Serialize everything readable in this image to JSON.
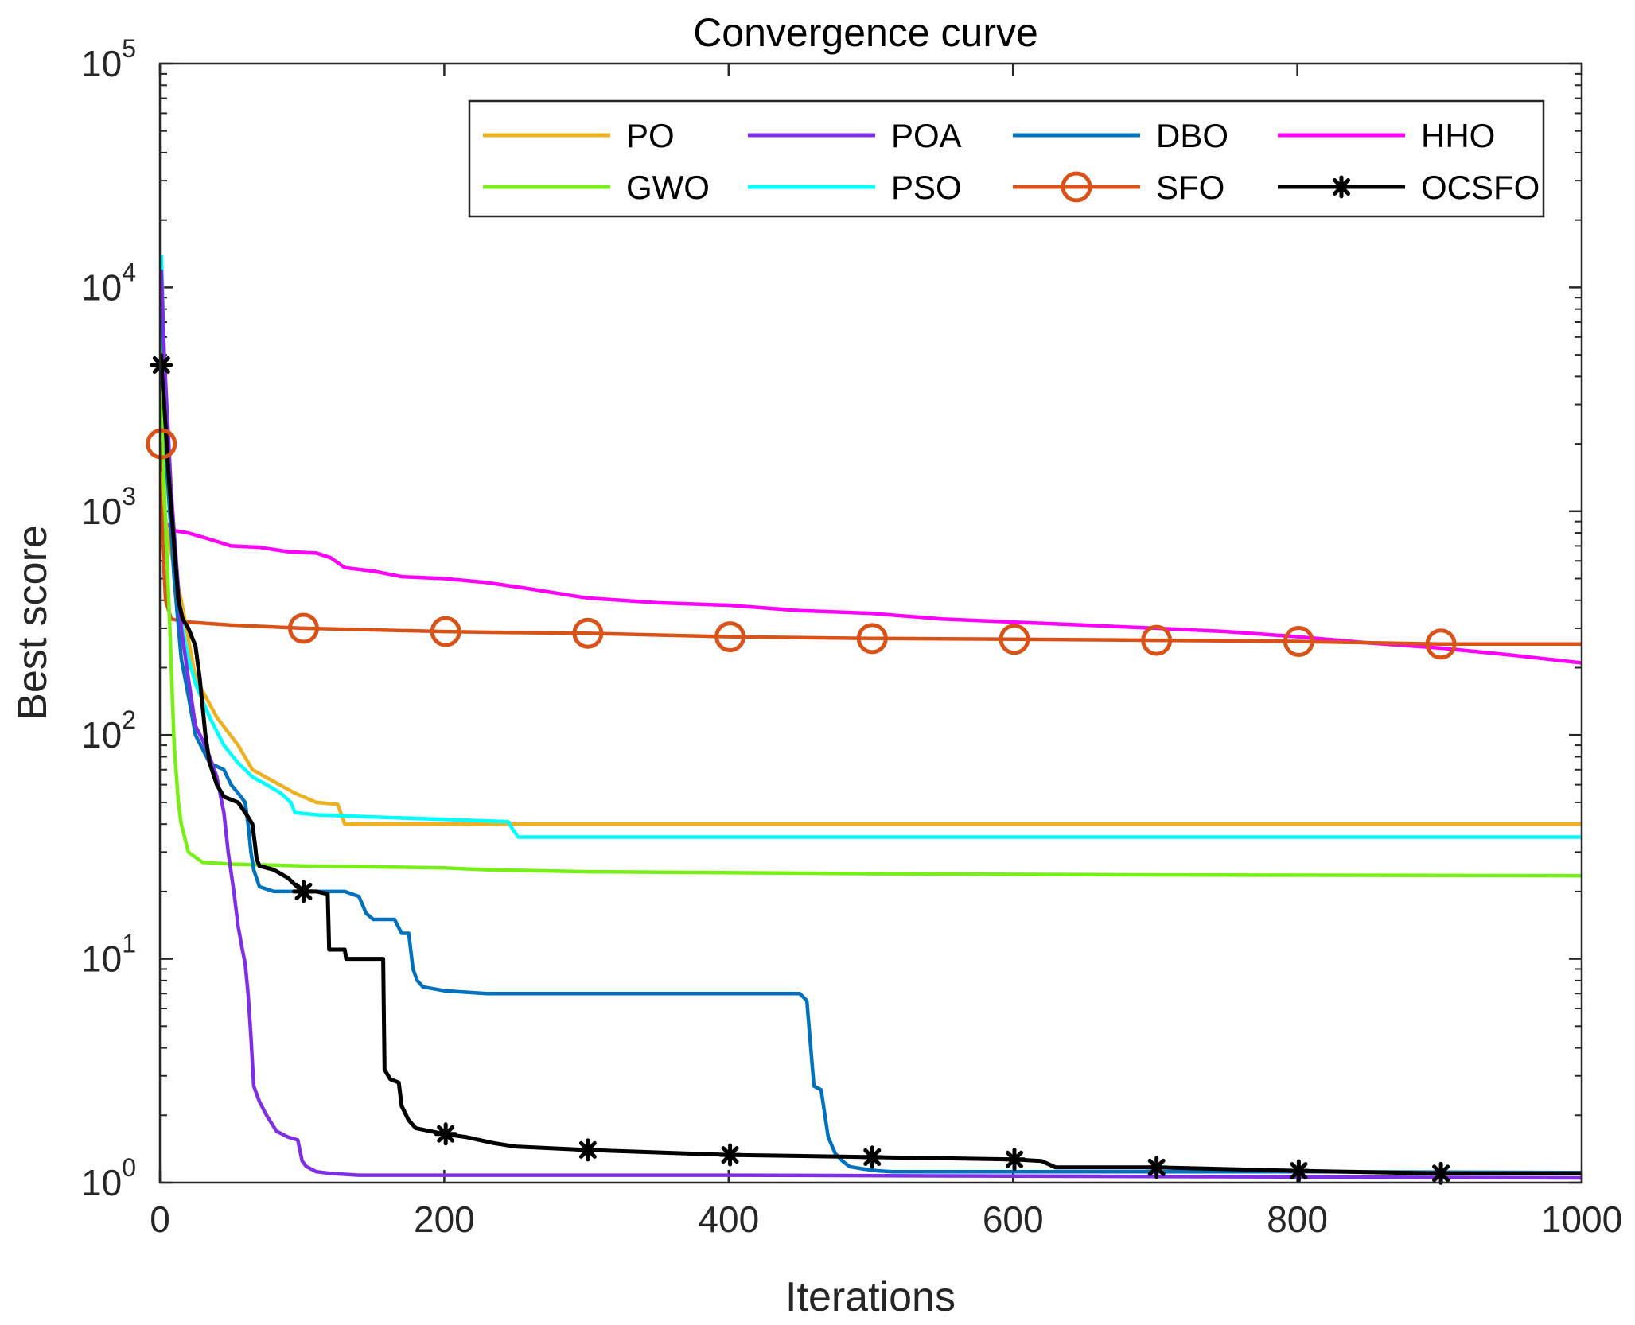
{
  "chart_data": {
    "type": "line",
    "title": "Convergence curve",
    "xlabel": "Iterations",
    "ylabel": "Best score",
    "xlim": [
      0,
      1000
    ],
    "ylim_log10": [
      0,
      5
    ],
    "y_scale": "log",
    "x_ticks": [
      "0",
      "200",
      "400",
      "600",
      "800",
      "1000"
    ],
    "y_ticks": [
      {
        "base": "10",
        "exp": "0"
      },
      {
        "base": "10",
        "exp": "1"
      },
      {
        "base": "10",
        "exp": "2"
      },
      {
        "base": "10",
        "exp": "3"
      },
      {
        "base": "10",
        "exp": "4"
      },
      {
        "base": "10",
        "exp": "5"
      }
    ],
    "legend_position": "top-right",
    "series": [
      {
        "name": "PO",
        "color": "#EDB120",
        "marker": "none",
        "points": [
          [
            1,
            1500
          ],
          [
            5,
            800
          ],
          [
            15,
            400
          ],
          [
            25,
            180
          ],
          [
            40,
            120
          ],
          [
            55,
            90
          ],
          [
            65,
            70
          ],
          [
            80,
            62
          ],
          [
            95,
            55
          ],
          [
            110,
            50
          ],
          [
            125,
            49
          ],
          [
            130,
            40
          ],
          [
            200,
            40
          ],
          [
            300,
            40
          ],
          [
            500,
            40
          ],
          [
            1000,
            40
          ]
        ]
      },
      {
        "name": "POA",
        "color": "#7E2FE5",
        "marker": "none",
        "points": [
          [
            1,
            12000
          ],
          [
            3,
            5000
          ],
          [
            8,
            1200
          ],
          [
            15,
            300
          ],
          [
            20,
            180
          ],
          [
            25,
            110
          ],
          [
            30,
            95
          ],
          [
            35,
            80
          ],
          [
            40,
            65
          ],
          [
            45,
            45
          ],
          [
            48,
            30
          ],
          [
            52,
            20
          ],
          [
            55,
            14
          ],
          [
            58,
            11
          ],
          [
            60,
            9.5
          ],
          [
            62,
            7
          ],
          [
            64,
            4.5
          ],
          [
            66,
            2.7
          ],
          [
            70,
            2.3
          ],
          [
            75,
            2
          ],
          [
            82,
            1.7
          ],
          [
            90,
            1.6
          ],
          [
            97,
            1.55
          ],
          [
            100,
            1.25
          ],
          [
            103,
            1.18
          ],
          [
            110,
            1.12
          ],
          [
            120,
            1.1
          ],
          [
            130,
            1.09
          ],
          [
            140,
            1.08
          ],
          [
            200,
            1.08
          ],
          [
            400,
            1.08
          ],
          [
            1000,
            1.05
          ]
        ]
      },
      {
        "name": "DBO",
        "color": "#0072BD",
        "marker": "none",
        "points": [
          [
            1,
            9000
          ],
          [
            5,
            1500
          ],
          [
            10,
            500
          ],
          [
            15,
            220
          ],
          [
            20,
            150
          ],
          [
            25,
            100
          ],
          [
            35,
            75
          ],
          [
            45,
            70
          ],
          [
            50,
            60
          ],
          [
            55,
            55
          ],
          [
            60,
            50
          ],
          [
            62,
            40
          ],
          [
            64,
            30
          ],
          [
            66,
            25
          ],
          [
            70,
            21
          ],
          [
            80,
            20
          ],
          [
            100,
            20
          ],
          [
            130,
            20
          ],
          [
            140,
            19
          ],
          [
            145,
            16
          ],
          [
            150,
            15
          ],
          [
            165,
            15
          ],
          [
            170,
            13
          ],
          [
            175,
            13
          ],
          [
            178,
            9
          ],
          [
            181,
            8
          ],
          [
            185,
            7.5
          ],
          [
            200,
            7.2
          ],
          [
            230,
            7.0
          ],
          [
            300,
            7.0
          ],
          [
            400,
            7.0
          ],
          [
            450,
            7.0
          ],
          [
            455,
            6.5
          ],
          [
            460,
            2.7
          ],
          [
            465,
            2.6
          ],
          [
            470,
            1.6
          ],
          [
            475,
            1.35
          ],
          [
            480,
            1.25
          ],
          [
            485,
            1.18
          ],
          [
            495,
            1.15
          ],
          [
            505,
            1.13
          ],
          [
            515,
            1.12
          ],
          [
            600,
            1.12
          ],
          [
            800,
            1.12
          ],
          [
            1000,
            1.11
          ]
        ]
      },
      {
        "name": "HHO",
        "color": "#FF00FF",
        "marker": "none",
        "points": [
          [
            1,
            2000
          ],
          [
            3,
            900
          ],
          [
            10,
            820
          ],
          [
            20,
            800
          ],
          [
            35,
            750
          ],
          [
            50,
            700
          ],
          [
            70,
            690
          ],
          [
            90,
            660
          ],
          [
            110,
            650
          ],
          [
            120,
            620
          ],
          [
            130,
            560
          ],
          [
            150,
            540
          ],
          [
            170,
            510
          ],
          [
            200,
            500
          ],
          [
            230,
            480
          ],
          [
            260,
            450
          ],
          [
            300,
            410
          ],
          [
            350,
            390
          ],
          [
            400,
            380
          ],
          [
            450,
            360
          ],
          [
            500,
            350
          ],
          [
            550,
            330
          ],
          [
            600,
            320
          ],
          [
            650,
            310
          ],
          [
            700,
            300
          ],
          [
            750,
            290
          ],
          [
            800,
            275
          ],
          [
            850,
            258
          ],
          [
            900,
            245
          ],
          [
            950,
            228
          ],
          [
            1000,
            210
          ]
        ]
      },
      {
        "name": "GWO",
        "color": "#77F015",
        "marker": "none",
        "points": [
          [
            1,
            9000
          ],
          [
            2,
            2000
          ],
          [
            4,
            900
          ],
          [
            7,
            300
          ],
          [
            10,
            90
          ],
          [
            13,
            50
          ],
          [
            15,
            40
          ],
          [
            20,
            30
          ],
          [
            30,
            27
          ],
          [
            50,
            26.5
          ],
          [
            100,
            26
          ],
          [
            200,
            25.5
          ],
          [
            230,
            25
          ],
          [
            300,
            24.5
          ],
          [
            500,
            24
          ],
          [
            700,
            23.7
          ],
          [
            1000,
            23.5
          ]
        ]
      },
      {
        "name": "PSO",
        "color": "#00FFFF",
        "marker": "none",
        "points": [
          [
            1,
            14000
          ],
          [
            3,
            5000
          ],
          [
            6,
            1500
          ],
          [
            10,
            600
          ],
          [
            15,
            320
          ],
          [
            20,
            220
          ],
          [
            25,
            170
          ],
          [
            35,
            120
          ],
          [
            45,
            90
          ],
          [
            55,
            75
          ],
          [
            65,
            65
          ],
          [
            75,
            60
          ],
          [
            85,
            55
          ],
          [
            92,
            50
          ],
          [
            95,
            45
          ],
          [
            110,
            44
          ],
          [
            150,
            43
          ],
          [
            200,
            42
          ],
          [
            245,
            41
          ],
          [
            248,
            38
          ],
          [
            252,
            35
          ],
          [
            300,
            35
          ],
          [
            500,
            35
          ],
          [
            700,
            35
          ],
          [
            1000,
            35
          ]
        ]
      },
      {
        "name": "SFO",
        "color": "#D95319",
        "marker": "circle",
        "points": [
          [
            1,
            2000
          ],
          [
            2,
            700
          ],
          [
            4,
            400
          ],
          [
            8,
            330
          ],
          [
            20,
            320
          ],
          [
            50,
            310
          ],
          [
            100,
            300
          ],
          [
            150,
            295
          ],
          [
            200,
            290
          ],
          [
            250,
            287
          ],
          [
            300,
            285
          ],
          [
            400,
            275
          ],
          [
            500,
            270
          ],
          [
            600,
            268
          ],
          [
            700,
            265
          ],
          [
            800,
            262
          ],
          [
            900,
            255
          ],
          [
            1000,
            255
          ]
        ],
        "marker_points": [
          [
            1,
            2000
          ],
          [
            101,
            300
          ],
          [
            201,
            290
          ],
          [
            301,
            285
          ],
          [
            401,
            275
          ],
          [
            501,
            270
          ],
          [
            601,
            268
          ],
          [
            701,
            265
          ],
          [
            801,
            262
          ],
          [
            901,
            255
          ]
        ]
      },
      {
        "name": "OCSFO",
        "color": "#000000",
        "marker": "star",
        "points": [
          [
            1,
            4500
          ],
          [
            3,
            3000
          ],
          [
            6,
            1500
          ],
          [
            10,
            700
          ],
          [
            13,
            400
          ],
          [
            16,
            330
          ],
          [
            20,
            300
          ],
          [
            25,
            250
          ],
          [
            28,
            180
          ],
          [
            32,
            100
          ],
          [
            35,
            75
          ],
          [
            40,
            60
          ],
          [
            45,
            53
          ],
          [
            55,
            50
          ],
          [
            60,
            45
          ],
          [
            62,
            43
          ],
          [
            65,
            40
          ],
          [
            67,
            32
          ],
          [
            68,
            28
          ],
          [
            70,
            26
          ],
          [
            80,
            25
          ],
          [
            90,
            23
          ],
          [
            100,
            20
          ],
          [
            110,
            20
          ],
          [
            118,
            19.5
          ],
          [
            119,
            11
          ],
          [
            130,
            11
          ],
          [
            131,
            10
          ],
          [
            157,
            10
          ],
          [
            158,
            3.2
          ],
          [
            162,
            2.9
          ],
          [
            168,
            2.8
          ],
          [
            170,
            2.2
          ],
          [
            175,
            1.9
          ],
          [
            180,
            1.75
          ],
          [
            190,
            1.7
          ],
          [
            200,
            1.65
          ],
          [
            215,
            1.6
          ],
          [
            235,
            1.5
          ],
          [
            250,
            1.45
          ],
          [
            300,
            1.4
          ],
          [
            400,
            1.33
          ],
          [
            500,
            1.3
          ],
          [
            600,
            1.27
          ],
          [
            620,
            1.25
          ],
          [
            630,
            1.17
          ],
          [
            700,
            1.17
          ],
          [
            800,
            1.13
          ],
          [
            900,
            1.1
          ],
          [
            1000,
            1.1
          ]
        ],
        "marker_points": [
          [
            1,
            4500
          ],
          [
            101,
            20
          ],
          [
            201,
            1.65
          ],
          [
            301,
            1.4
          ],
          [
            401,
            1.33
          ],
          [
            501,
            1.3
          ],
          [
            601,
            1.27
          ],
          [
            701,
            1.17
          ],
          [
            801,
            1.13
          ],
          [
            901,
            1.1
          ]
        ]
      }
    ]
  }
}
